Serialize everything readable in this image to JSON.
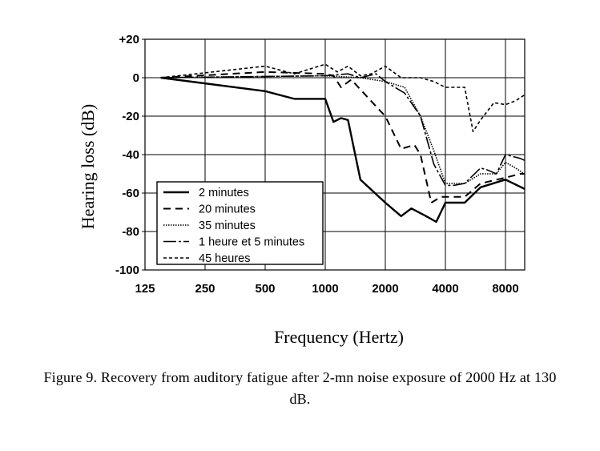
{
  "chart_data": {
    "type": "line",
    "title": "",
    "xlabel": "Frequency (Hertz)",
    "ylabel": "Hearing loss (dB)",
    "x_scale": "log2",
    "xlim": [
      125,
      11000
    ],
    "ylim": [
      -100,
      20
    ],
    "x_ticks": [
      125,
      250,
      500,
      1000,
      2000,
      4000,
      8000
    ],
    "x_tick_labels": [
      "125",
      "250",
      "500",
      "1000",
      "2000",
      "4000",
      "8000"
    ],
    "y_ticks": [
      20,
      0,
      -20,
      -40,
      -60,
      -80,
      -100
    ],
    "y_tick_labels": [
      "+20",
      "0",
      "-20",
      "-40",
      "-60",
      "-80",
      "-100"
    ],
    "grid": true,
    "legend_position": "bottom-left",
    "series": [
      {
        "name": "2 minutes",
        "style": "solid",
        "x": [
          150,
          500,
          700,
          1000,
          1100,
          1200,
          1300,
          1500,
          2000,
          2400,
          2700,
          3200,
          3600,
          4000,
          4400,
          5000,
          6000,
          8000,
          11000
        ],
        "y": [
          0,
          -7,
          -11,
          -11,
          -23,
          -21,
          -22,
          -53,
          -65,
          -72,
          -68,
          -72,
          -75,
          -65,
          -65,
          -65,
          -57,
          -53,
          -60
        ]
      },
      {
        "name": "20 minutes",
        "style": "dashed",
        "x": [
          150,
          500,
          1000,
          1100,
          1200,
          1350,
          1800,
          2000,
          2400,
          2800,
          3000,
          3400,
          3800,
          4500,
          5000,
          6000,
          8000,
          9500,
          11000
        ],
        "y": [
          0,
          3,
          2,
          1,
          -5,
          -1,
          -15,
          -20,
          -37,
          -35,
          -40,
          -65,
          -62,
          -62,
          -62,
          -55,
          -52,
          -50,
          -50
        ]
      },
      {
        "name": "35 minutes",
        "style": "dotted",
        "x": [
          150,
          1000,
          1500,
          2000,
          2500,
          3000,
          3500,
          4000,
          4500,
          5000,
          6000,
          7200,
          8000,
          9000,
          11000
        ],
        "y": [
          0,
          1,
          0,
          -2,
          -5,
          -20,
          -38,
          -55,
          -55,
          -55,
          -50,
          -50,
          -44,
          -47,
          -53
        ]
      },
      {
        "name": "1 heure et 5 minutes",
        "style": "dash-dot",
        "x": [
          150,
          1000,
          1300,
          1500,
          1800,
          2000,
          2500,
          3000,
          3500,
          4000,
          4400,
          5000,
          6000,
          6500,
          7200,
          8000,
          9500,
          11000
        ],
        "y": [
          0,
          1,
          2,
          0,
          2,
          -2,
          -8,
          -20,
          -45,
          -56,
          -56,
          -55,
          -47,
          -48,
          -50,
          -40,
          -42,
          -45
        ]
      },
      {
        "name": "45 heures",
        "style": "short-dash",
        "x": [
          150,
          500,
          700,
          1000,
          1150,
          1300,
          1500,
          1700,
          2000,
          2400,
          3000,
          3500,
          4000,
          5000,
          5500,
          6000,
          7000,
          8000,
          9000,
          11000
        ],
        "y": [
          0,
          6,
          2,
          7,
          3,
          6,
          1,
          2,
          6,
          0,
          0,
          -2,
          -5,
          -5,
          -28,
          -22,
          -13,
          -14,
          -12,
          -6
        ]
      }
    ]
  },
  "caption": {
    "line1": "Figure 9. Recovery from auditory fatigue after 2-mn noise exposure of 2000 Hz at 130",
    "line2": "dB."
  }
}
